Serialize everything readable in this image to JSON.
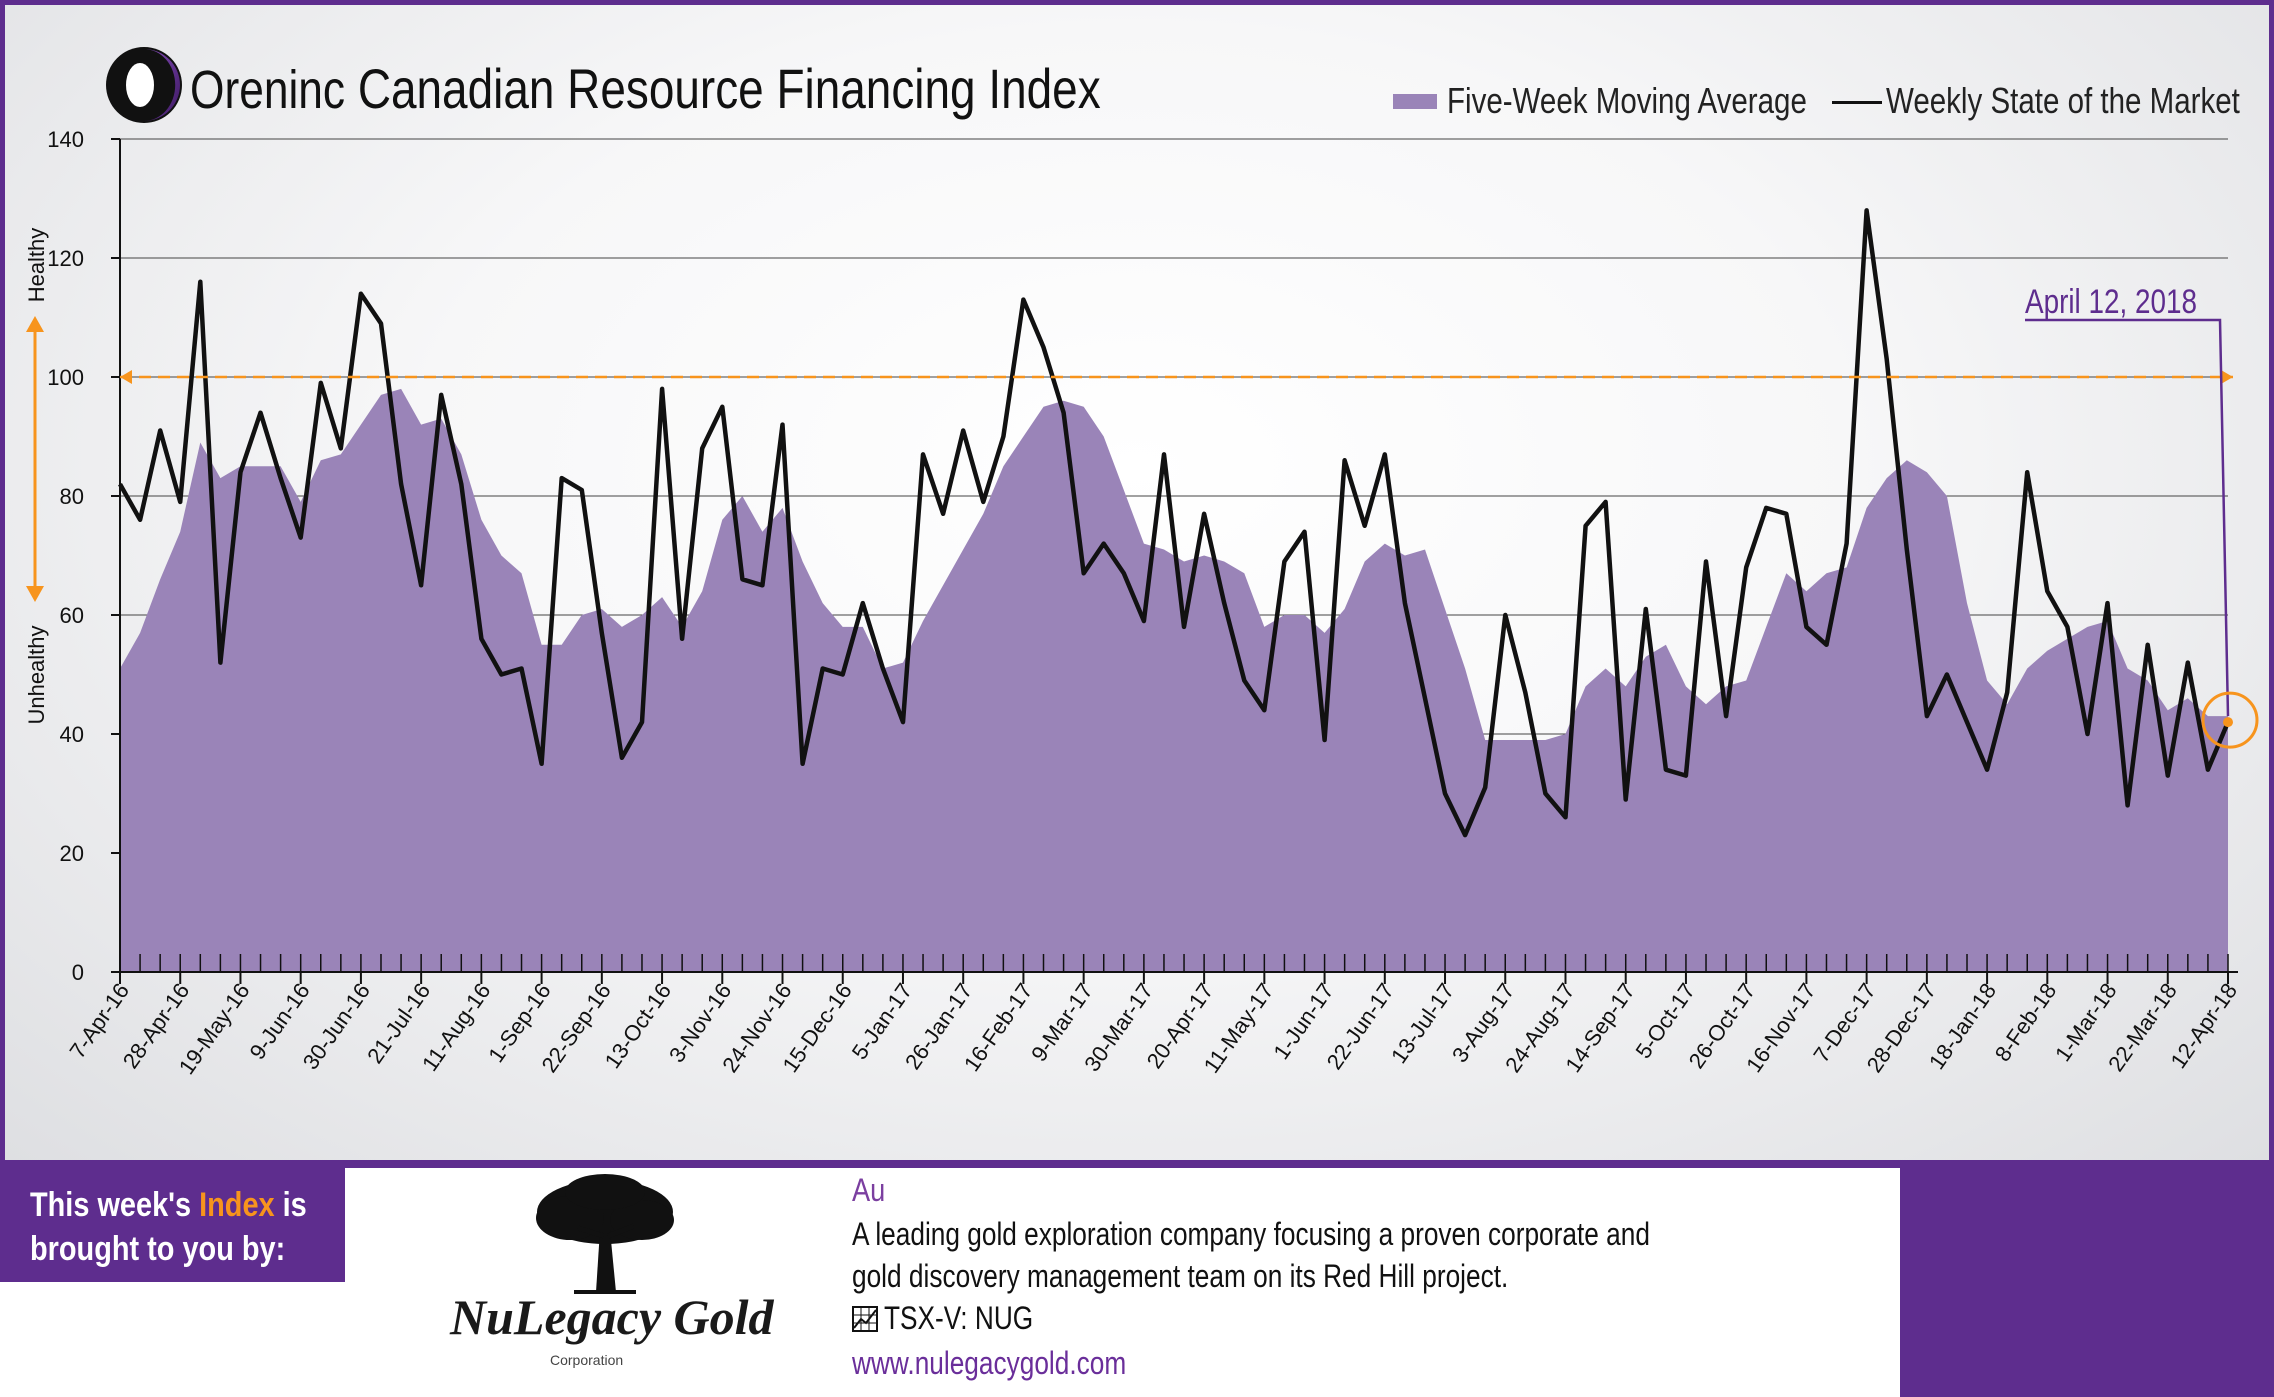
{
  "header": {
    "brand": "Oreninc",
    "title": "Canadian Resource Financing Index"
  },
  "legend": {
    "area_label": "Five-Week Moving Average",
    "line_label": "Weekly State of the Market"
  },
  "colors": {
    "frame": "#5e2d8e",
    "area_fill": "#9a84b8",
    "line": "#111111",
    "threshold": "#f7941d",
    "callout": "#5e2d8e"
  },
  "chart_data": {
    "type": "area",
    "title": "Canadian Resource Financing Index",
    "ylim": [
      0,
      140
    ],
    "yticks": [
      0,
      20,
      40,
      60,
      80,
      100,
      120,
      140
    ],
    "ylabel_top": "Healthy",
    "ylabel_bottom": "Unhealthy",
    "grid": true,
    "legend_position": "top-right",
    "threshold_line": 100,
    "xtick_labels": [
      "7-Apr-16",
      "28-Apr-16",
      "19-May-16",
      "9-Jun-16",
      "30-Jun-16",
      "21-Jul-16",
      "11-Aug-16",
      "1-Sep-16",
      "22-Sep-16",
      "13-Oct-16",
      "3-Nov-16",
      "24-Nov-16",
      "15-Dec-16",
      "5-Jan-17",
      "26-Jan-17",
      "16-Feb-17",
      "9-Mar-17",
      "30-Mar-17",
      "20-Apr-17",
      "11-May-17",
      "1-Jun-17",
      "22-Jun-17",
      "13-Jul-17",
      "3-Aug-17",
      "24-Aug-17",
      "14-Sep-17",
      "5-Oct-17",
      "26-Oct-17",
      "16-Nov-17",
      "7-Dec-17",
      "28-Dec-17",
      "18-Jan-18",
      "8-Feb-18",
      "1-Mar-18",
      "22-Mar-18",
      "12-Apr-18"
    ],
    "series": [
      {
        "name": "Five-Week Moving Average",
        "type": "area",
        "values": [
          51,
          57,
          66,
          74,
          89,
          83,
          85,
          85,
          85,
          79,
          86,
          87,
          92,
          97,
          98,
          92,
          93,
          87,
          76,
          70,
          67,
          55,
          55,
          60,
          61,
          58,
          60,
          63,
          58,
          64,
          76,
          80,
          74,
          78,
          69,
          62,
          58,
          58,
          51,
          52,
          59,
          65,
          71,
          77,
          85,
          90,
          95,
          96,
          95,
          90,
          81,
          72,
          71,
          69,
          70,
          69,
          67,
          58,
          60,
          60,
          57,
          61,
          69,
          72,
          70,
          71,
          61,
          51,
          39,
          39,
          39,
          39,
          40,
          48,
          51,
          48,
          53,
          55,
          48,
          45,
          48,
          49,
          58,
          67,
          64,
          67,
          68,
          78,
          83,
          86,
          84,
          80,
          62,
          49,
          45,
          51,
          54,
          56,
          58,
          59,
          51,
          49,
          44,
          46,
          43,
          43
        ]
      },
      {
        "name": "Weekly State of the Market",
        "type": "line",
        "values": [
          82,
          76,
          91,
          79,
          116,
          52,
          84,
          94,
          83,
          73,
          99,
          88,
          114,
          109,
          82,
          65,
          97,
          82,
          56,
          50,
          51,
          35,
          83,
          81,
          57,
          36,
          42,
          98,
          56,
          88,
          95,
          66,
          65,
          92,
          35,
          51,
          50,
          62,
          51,
          42,
          87,
          77,
          91,
          79,
          90,
          113,
          105,
          94,
          67,
          72,
          67,
          59,
          87,
          58,
          77,
          62,
          49,
          44,
          69,
          74,
          39,
          86,
          75,
          87,
          62,
          46,
          30,
          23,
          31,
          60,
          47,
          30,
          26,
          75,
          79,
          29,
          61,
          34,
          33,
          69,
          43,
          68,
          78,
          77,
          58,
          55,
          72,
          128,
          103,
          71,
          43,
          50,
          42,
          34,
          47,
          84,
          64,
          58,
          40,
          62,
          28,
          55,
          33,
          52,
          34,
          42
        ]
      }
    ],
    "annotations": [
      {
        "text": "April 12, 2018",
        "value": 42
      }
    ]
  },
  "sponsor": {
    "label_part1": "This week's",
    "label_highlight": "Index",
    "label_part2": "is",
    "label_line2": "brought to you by:",
    "company_name": "NuLegacy Gold",
    "company_sub": "Corporation",
    "symbol": "Au",
    "description_line1": "A leading gold exploration company focusing a proven corporate and",
    "description_line2": "gold discovery management team on its Red Hill project.",
    "ticker": "TSX-V:  NUG",
    "website": "www.nulegacygold.com"
  }
}
